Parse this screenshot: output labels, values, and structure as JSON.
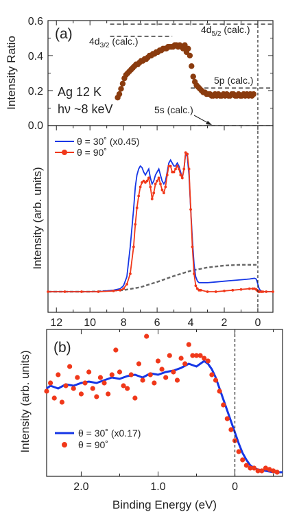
{
  "colors": {
    "blue": "#1536e6",
    "red": "#f0381a",
    "brown": "#8a3b0e",
    "gray": "#666666",
    "axis": "#222222"
  },
  "chart_data": [
    {
      "type": "scatter",
      "panel_label": "(a)",
      "ylabel": "Intensity Ratio",
      "xlim": [
        12.5,
        -0.9
      ],
      "ylim": [
        0,
        0.6
      ],
      "yticks": [
        "0.0",
        "0.2",
        "0.4",
        "0.6"
      ],
      "sample_info": [
        "Ag  12 K",
        "hν ~8 keV"
      ],
      "annotations": {
        "d32": "4d3/2 (calc.)",
        "d52": "4d5/2 (calc.)",
        "p5": "5p (calc.)",
        "s5": "5s (calc.)"
      },
      "calc_levels": [
        {
          "name": "4d3/2 (calc.)",
          "y": 0.51,
          "x_range": [
            8.8,
            5.1
          ]
        },
        {
          "name": "4d5/2 (calc.)",
          "y": 0.58,
          "x_range": [
            8.8,
            -0.9
          ]
        },
        {
          "name": "5p (calc.)",
          "y": 0.215,
          "x_range": [
            4.0,
            -0.9
          ]
        },
        {
          "name": "5s (calc.)",
          "y": 0.0,
          "x_range": [
            4.0,
            -0.9
          ]
        }
      ],
      "fermi_level": 0,
      "series": [
        {
          "x": [
            8.35,
            8.25,
            8.15,
            8.05,
            7.95,
            7.85,
            7.75,
            7.65,
            7.55,
            7.45,
            7.35,
            7.25,
            7.15,
            7.05,
            6.95,
            6.85,
            6.75,
            6.65,
            6.55,
            6.45,
            6.35,
            6.25,
            6.15,
            6.05,
            5.95,
            5.85,
            5.75,
            5.65,
            5.55,
            5.45,
            5.35,
            5.25,
            5.15,
            5.05,
            4.95,
            4.85,
            4.75,
            4.65,
            4.55,
            4.45,
            4.35,
            4.25,
            4.15,
            4.05,
            3.95,
            3.85,
            3.75,
            3.65,
            3.55,
            3.45,
            3.35,
            3.25,
            3.15,
            3.05,
            2.95,
            2.85,
            2.75,
            2.65,
            2.55,
            2.45,
            2.35,
            2.25,
            2.15,
            2.05,
            1.95,
            1.85,
            1.75,
            1.65,
            1.55,
            1.45,
            1.35,
            1.25,
            1.15,
            1.05,
            0.95,
            0.85,
            0.75,
            0.65,
            0.55,
            0.45,
            0.35,
            0.25
          ],
          "values": [
            0.16,
            0.18,
            0.21,
            0.24,
            0.27,
            0.29,
            0.3,
            0.31,
            0.32,
            0.33,
            0.34,
            0.35,
            0.35,
            0.36,
            0.37,
            0.37,
            0.38,
            0.38,
            0.39,
            0.4,
            0.4,
            0.41,
            0.41,
            0.42,
            0.42,
            0.43,
            0.43,
            0.44,
            0.44,
            0.44,
            0.45,
            0.45,
            0.45,
            0.45,
            0.46,
            0.46,
            0.45,
            0.46,
            0.45,
            0.44,
            0.46,
            0.42,
            0.44,
            0.4,
            0.34,
            0.28,
            0.25,
            0.23,
            0.22,
            0.21,
            0.2,
            0.19,
            0.19,
            0.18,
            0.18,
            0.18,
            0.17,
            0.17,
            0.18,
            0.17,
            0.18,
            0.17,
            0.17,
            0.18,
            0.17,
            0.18,
            0.17,
            0.17,
            0.18,
            0.18,
            0.17,
            0.17,
            0.18,
            0.17,
            0.17,
            0.18,
            0.17,
            0.18,
            0.17,
            0.18,
            0.17,
            0.18
          ]
        }
      ]
    },
    {
      "type": "line",
      "ylabel": "Intensity (arb. units)",
      "xlim": [
        12.5,
        -0.9
      ],
      "xticks": [
        "12",
        "10",
        "8",
        "6",
        "4",
        "2",
        "0"
      ],
      "series": [
        {
          "name": "θ = 30˚ (x0.45)",
          "x": [
            12.5,
            11.5,
            10.5,
            9.5,
            8.6,
            8.2,
            8.0,
            7.8,
            7.6,
            7.4,
            7.3,
            7.2,
            7.1,
            7.0,
            6.9,
            6.8,
            6.7,
            6.6,
            6.5,
            6.4,
            6.3,
            6.2,
            6.1,
            6.0,
            5.9,
            5.8,
            5.7,
            5.6,
            5.5,
            5.4,
            5.3,
            5.2,
            5.1,
            5.0,
            4.9,
            4.8,
            4.7,
            4.6,
            4.5,
            4.4,
            4.3,
            4.2,
            4.1,
            4.0,
            3.9,
            3.8,
            3.7,
            3.6,
            3.5,
            3.4,
            3.0,
            2.5,
            2.0,
            1.5,
            1.0,
            0.5,
            0.3,
            0.2,
            0.1,
            0.05,
            0.0,
            -0.05,
            -0.1,
            -0.2,
            -0.3,
            -0.5,
            -0.9
          ],
          "values": [
            0.0,
            0.0,
            0.0,
            0.0,
            0.01,
            0.02,
            0.04,
            0.1,
            0.3,
            0.55,
            0.7,
            0.78,
            0.82,
            0.84,
            0.83,
            0.8,
            0.78,
            0.8,
            0.82,
            0.76,
            0.72,
            0.74,
            0.78,
            0.8,
            0.82,
            0.78,
            0.74,
            0.72,
            0.74,
            0.8,
            0.86,
            0.88,
            0.86,
            0.84,
            0.84,
            0.86,
            0.84,
            0.8,
            0.76,
            0.82,
            0.93,
            0.9,
            0.78,
            0.55,
            0.35,
            0.18,
            0.1,
            0.07,
            0.06,
            0.06,
            0.06,
            0.065,
            0.07,
            0.075,
            0.08,
            0.085,
            0.088,
            0.09,
            0.085,
            0.07,
            0.05,
            0.03,
            0.015,
            0.005,
            0.0,
            0.0,
            0.0
          ]
        },
        {
          "name": "θ = 90˚",
          "x": [
            12.5,
            11.5,
            10.5,
            9.5,
            8.6,
            8.2,
            8.0,
            7.8,
            7.6,
            7.4,
            7.3,
            7.2,
            7.1,
            7.0,
            6.9,
            6.8,
            6.7,
            6.6,
            6.5,
            6.4,
            6.3,
            6.2,
            6.1,
            6.0,
            5.9,
            5.8,
            5.7,
            5.6,
            5.5,
            5.4,
            5.3,
            5.2,
            5.1,
            5.0,
            4.9,
            4.8,
            4.7,
            4.6,
            4.5,
            4.4,
            4.3,
            4.2,
            4.1,
            4.0,
            3.9,
            3.8,
            3.7,
            3.6,
            3.5,
            3.4,
            3.0,
            2.5,
            2.0,
            1.5,
            1.0,
            0.5,
            0.3,
            0.2,
            0.1,
            0.05,
            0.0,
            -0.05,
            -0.1,
            -0.2,
            -0.3,
            -0.5,
            -0.9
          ],
          "values": [
            0.0,
            0.0,
            0.0,
            0.0,
            0.005,
            0.01,
            0.02,
            0.05,
            0.12,
            0.3,
            0.45,
            0.56,
            0.64,
            0.7,
            0.73,
            0.74,
            0.73,
            0.74,
            0.76,
            0.7,
            0.62,
            0.66,
            0.72,
            0.74,
            0.76,
            0.72,
            0.68,
            0.66,
            0.7,
            0.78,
            0.84,
            0.84,
            0.8,
            0.8,
            0.82,
            0.84,
            0.82,
            0.78,
            0.76,
            0.82,
            0.93,
            0.92,
            0.82,
            0.55,
            0.3,
            0.12,
            0.04,
            0.02,
            0.01,
            0.01,
            0.0,
            0.0,
            0.005,
            0.01,
            0.015,
            0.02,
            0.02,
            0.02,
            0.015,
            0.01,
            0.005,
            0.0,
            0.0,
            0.0,
            0.0,
            0.0,
            0.0
          ]
        },
        {
          "x": [
            12.5,
            10.0,
            9.0,
            8.0,
            7.0,
            6.0,
            5.0,
            4.0,
            3.0,
            2.0,
            1.0,
            0.0
          ],
          "values": [
            0.0,
            0.0,
            -0.005,
            -0.01,
            -0.03,
            -0.065,
            -0.105,
            -0.14,
            -0.162,
            -0.175,
            -0.18,
            -0.18
          ]
        }
      ]
    },
    {
      "type": "line",
      "panel_label": "(b)",
      "xlabel": "Binding Energy (eV)",
      "ylabel": "Intensity (arb. units)",
      "xlim": [
        2.45,
        -0.62
      ],
      "xticks": [
        "2.0",
        "1.0",
        "0"
      ],
      "fermi_level": 0,
      "series": [
        {
          "name": "θ = 30˚ (x0.17)",
          "x": [
            2.45,
            2.4,
            2.3,
            2.2,
            2.1,
            2.0,
            1.9,
            1.8,
            1.7,
            1.6,
            1.5,
            1.4,
            1.3,
            1.2,
            1.1,
            1.0,
            0.9,
            0.8,
            0.7,
            0.6,
            0.5,
            0.4,
            0.35,
            0.3,
            0.25,
            0.2,
            0.15,
            0.1,
            0.05,
            0.0,
            -0.05,
            -0.1,
            -0.15,
            -0.2,
            -0.25,
            -0.3,
            -0.4,
            -0.5,
            -0.62
          ],
          "values": [
            0.62,
            0.64,
            0.62,
            0.65,
            0.64,
            0.66,
            0.67,
            0.66,
            0.68,
            0.7,
            0.69,
            0.71,
            0.72,
            0.7,
            0.73,
            0.72,
            0.74,
            0.75,
            0.77,
            0.8,
            0.78,
            0.82,
            0.8,
            0.76,
            0.7,
            0.62,
            0.54,
            0.46,
            0.38,
            0.3,
            0.22,
            0.15,
            0.1,
            0.06,
            0.04,
            0.03,
            0.02,
            0.01,
            0.01
          ]
        },
        {
          "name": "θ = 90˚",
          "x": [
            2.45,
            2.4,
            2.35,
            2.3,
            2.25,
            2.2,
            2.15,
            2.1,
            2.05,
            2.0,
            1.95,
            1.9,
            1.85,
            1.8,
            1.75,
            1.7,
            1.65,
            1.6,
            1.55,
            1.5,
            1.45,
            1.4,
            1.35,
            1.3,
            1.25,
            1.2,
            1.15,
            1.1,
            1.05,
            1.0,
            0.95,
            0.9,
            0.85,
            0.8,
            0.75,
            0.7,
            0.65,
            0.6,
            0.55,
            0.5,
            0.45,
            0.4,
            0.35,
            0.3,
            0.25,
            0.2,
            0.15,
            0.1,
            0.05,
            0.0,
            -0.05,
            -0.1,
            -0.15,
            -0.2,
            -0.25,
            -0.3,
            -0.35,
            -0.4,
            -0.45,
            -0.5,
            -0.55
          ],
          "values": [
            0.6,
            0.66,
            0.55,
            0.72,
            0.52,
            0.64,
            0.78,
            0.62,
            0.7,
            0.58,
            0.66,
            0.74,
            0.62,
            0.56,
            0.7,
            0.66,
            0.58,
            0.72,
            0.9,
            0.74,
            0.64,
            0.62,
            0.72,
            0.55,
            0.8,
            0.68,
            1.0,
            0.72,
            0.66,
            0.82,
            0.76,
            0.7,
            0.86,
            0.74,
            0.68,
            0.84,
            0.8,
            0.94,
            0.86,
            0.86,
            0.86,
            0.84,
            0.82,
            0.72,
            0.68,
            0.6,
            0.5,
            0.4,
            0.32,
            0.24,
            0.16,
            0.1,
            0.06,
            0.04,
            0.04,
            0.02,
            0.02,
            0.04,
            0.03,
            0.02,
            0.01
          ]
        }
      ]
    }
  ]
}
